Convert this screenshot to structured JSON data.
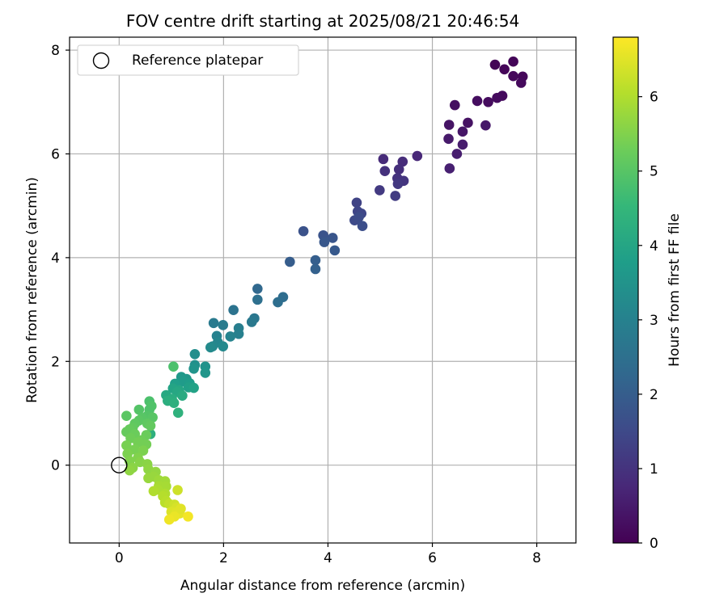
{
  "chart_data": {
    "type": "scatter",
    "title": "FOV centre drift starting at 2025/08/21 20:46:54",
    "xlabel": "Angular distance from reference (arcmin)",
    "ylabel": "Rotation from reference (arcmin)",
    "xlim": [
      -0.95,
      8.75
    ],
    "ylim": [
      -1.5,
      8.25
    ],
    "xticks": [
      0,
      2,
      4,
      6,
      8
    ],
    "yticks": [
      0,
      2,
      4,
      6,
      8
    ],
    "grid": true,
    "legend": {
      "placement": "top-left",
      "entries": [
        "Reference platepar"
      ]
    },
    "reference_point": {
      "x": 0,
      "y": 0,
      "label": "Reference platepar"
    },
    "colorbar": {
      "label": "Hours from first FF file",
      "range": [
        0,
        6.8
      ],
      "ticks": [
        0,
        1,
        2,
        3,
        4,
        5,
        6
      ],
      "colormap": "viridis"
    },
    "series": [
      {
        "points": [
          {
            "x": 7.2,
            "y": 7.72,
            "c": 0.05
          },
          {
            "x": 7.55,
            "y": 7.78,
            "c": 0.08
          },
          {
            "x": 7.38,
            "y": 7.63,
            "c": 0.1
          },
          {
            "x": 7.73,
            "y": 7.49,
            "c": 0.12
          },
          {
            "x": 7.55,
            "y": 7.5,
            "c": 0.14
          },
          {
            "x": 7.7,
            "y": 7.37,
            "c": 0.16
          },
          {
            "x": 7.34,
            "y": 7.12,
            "c": 0.18
          },
          {
            "x": 7.24,
            "y": 7.08,
            "c": 0.2
          },
          {
            "x": 7.07,
            "y": 7.0,
            "c": 0.22
          },
          {
            "x": 6.86,
            "y": 7.02,
            "c": 0.24
          },
          {
            "x": 6.43,
            "y": 6.94,
            "c": 0.28
          },
          {
            "x": 6.68,
            "y": 6.6,
            "c": 0.32
          },
          {
            "x": 6.32,
            "y": 6.56,
            "c": 0.36
          },
          {
            "x": 6.58,
            "y": 6.43,
            "c": 0.4
          },
          {
            "x": 7.02,
            "y": 6.55,
            "c": 0.44
          },
          {
            "x": 6.31,
            "y": 6.29,
            "c": 0.48
          },
          {
            "x": 6.58,
            "y": 6.18,
            "c": 0.52
          },
          {
            "x": 6.47,
            "y": 6.0,
            "c": 0.56
          },
          {
            "x": 6.33,
            "y": 5.72,
            "c": 0.6
          },
          {
            "x": 5.71,
            "y": 5.96,
            "c": 0.75
          },
          {
            "x": 5.06,
            "y": 5.9,
            "c": 0.82
          },
          {
            "x": 5.43,
            "y": 5.85,
            "c": 0.86
          },
          {
            "x": 5.36,
            "y": 5.7,
            "c": 0.9
          },
          {
            "x": 5.09,
            "y": 5.67,
            "c": 0.95
          },
          {
            "x": 5.33,
            "y": 5.53,
            "c": 1.0
          },
          {
            "x": 5.45,
            "y": 5.48,
            "c": 1.05
          },
          {
            "x": 5.34,
            "y": 5.42,
            "c": 1.1
          },
          {
            "x": 4.99,
            "y": 5.3,
            "c": 1.15
          },
          {
            "x": 5.29,
            "y": 5.19,
            "c": 1.2
          },
          {
            "x": 4.55,
            "y": 5.06,
            "c": 1.35
          },
          {
            "x": 4.57,
            "y": 4.89,
            "c": 1.4
          },
          {
            "x": 4.64,
            "y": 4.85,
            "c": 1.45
          },
          {
            "x": 4.51,
            "y": 4.72,
            "c": 1.5
          },
          {
            "x": 4.59,
            "y": 4.78,
            "c": 1.55
          },
          {
            "x": 4.66,
            "y": 4.61,
            "c": 1.6
          },
          {
            "x": 3.53,
            "y": 4.51,
            "c": 1.7
          },
          {
            "x": 3.91,
            "y": 4.43,
            "c": 1.75
          },
          {
            "x": 4.09,
            "y": 4.38,
            "c": 1.8
          },
          {
            "x": 3.93,
            "y": 4.3,
            "c": 1.85
          },
          {
            "x": 4.13,
            "y": 4.14,
            "c": 1.9
          },
          {
            "x": 3.27,
            "y": 3.92,
            "c": 2.0
          },
          {
            "x": 3.76,
            "y": 3.95,
            "c": 2.05
          },
          {
            "x": 3.76,
            "y": 3.78,
            "c": 2.1
          },
          {
            "x": 2.65,
            "y": 3.4,
            "c": 2.3
          },
          {
            "x": 3.14,
            "y": 3.24,
            "c": 2.4
          },
          {
            "x": 3.04,
            "y": 3.14,
            "c": 2.45
          },
          {
            "x": 2.65,
            "y": 3.19,
            "c": 2.5
          },
          {
            "x": 2.19,
            "y": 2.99,
            "c": 2.6
          },
          {
            "x": 2.59,
            "y": 2.83,
            "c": 2.7
          },
          {
            "x": 2.54,
            "y": 2.76,
            "c": 2.75
          },
          {
            "x": 1.81,
            "y": 2.74,
            "c": 2.8
          },
          {
            "x": 1.99,
            "y": 2.7,
            "c": 2.85
          },
          {
            "x": 2.29,
            "y": 2.64,
            "c": 2.9
          },
          {
            "x": 2.29,
            "y": 2.53,
            "c": 2.95
          },
          {
            "x": 1.87,
            "y": 2.49,
            "c": 3.0
          },
          {
            "x": 2.13,
            "y": 2.48,
            "c": 3.05
          },
          {
            "x": 1.89,
            "y": 2.37,
            "c": 3.1
          },
          {
            "x": 1.79,
            "y": 2.29,
            "c": 3.15
          },
          {
            "x": 1.99,
            "y": 2.29,
            "c": 3.2
          },
          {
            "x": 1.75,
            "y": 2.27,
            "c": 3.25
          },
          {
            "x": 1.45,
            "y": 2.14,
            "c": 3.35
          },
          {
            "x": 1.45,
            "y": 1.93,
            "c": 3.4
          },
          {
            "x": 1.65,
            "y": 1.9,
            "c": 3.45
          },
          {
            "x": 1.43,
            "y": 1.86,
            "c": 3.5
          },
          {
            "x": 1.65,
            "y": 1.78,
            "c": 3.55
          },
          {
            "x": 1.29,
            "y": 1.66,
            "c": 3.6
          },
          {
            "x": 1.19,
            "y": 1.7,
            "c": 3.65
          },
          {
            "x": 1.23,
            "y": 1.61,
            "c": 3.7
          },
          {
            "x": 1.35,
            "y": 1.58,
            "c": 3.75
          },
          {
            "x": 1.07,
            "y": 1.57,
            "c": 3.8
          },
          {
            "x": 1.33,
            "y": 1.5,
            "c": 3.85
          },
          {
            "x": 1.43,
            "y": 1.49,
            "c": 3.9
          },
          {
            "x": 1.03,
            "y": 1.48,
            "c": 3.95
          },
          {
            "x": 1.15,
            "y": 1.44,
            "c": 4.0
          },
          {
            "x": 1.11,
            "y": 1.41,
            "c": 4.05
          },
          {
            "x": 0.9,
            "y": 1.35,
            "c": 4.1
          },
          {
            "x": 1.21,
            "y": 1.34,
            "c": 4.15
          },
          {
            "x": 1.01,
            "y": 1.28,
            "c": 4.2
          },
          {
            "x": 0.93,
            "y": 1.24,
            "c": 4.25
          },
          {
            "x": 1.05,
            "y": 1.2,
            "c": 4.3
          },
          {
            "x": 1.13,
            "y": 1.01,
            "c": 4.35
          },
          {
            "x": 0.6,
            "y": 0.6,
            "c": 4.3
          },
          {
            "x": 1.04,
            "y": 1.9,
            "c": 4.85
          },
          {
            "x": 0.58,
            "y": 1.23,
            "c": 4.85
          },
          {
            "x": 0.62,
            "y": 1.14,
            "c": 4.9
          },
          {
            "x": 0.58,
            "y": 1.07,
            "c": 4.9
          },
          {
            "x": 0.38,
            "y": 1.07,
            "c": 4.95
          },
          {
            "x": 0.54,
            "y": 0.95,
            "c": 4.95
          },
          {
            "x": 0.64,
            "y": 0.92,
            "c": 5.0
          },
          {
            "x": 0.44,
            "y": 0.91,
            "c": 5.0
          },
          {
            "x": 0.14,
            "y": 0.95,
            "c": 5.05
          },
          {
            "x": 0.38,
            "y": 0.86,
            "c": 5.05
          },
          {
            "x": 0.3,
            "y": 0.8,
            "c": 5.1
          },
          {
            "x": 0.54,
            "y": 0.8,
            "c": 5.1
          },
          {
            "x": 0.6,
            "y": 0.76,
            "c": 5.15
          },
          {
            "x": 0.26,
            "y": 0.72,
            "c": 5.15
          },
          {
            "x": 0.2,
            "y": 0.69,
            "c": 5.2
          },
          {
            "x": 0.14,
            "y": 0.64,
            "c": 5.2
          },
          {
            "x": 0.3,
            "y": 0.6,
            "c": 5.25
          },
          {
            "x": 0.52,
            "y": 0.58,
            "c": 5.25
          },
          {
            "x": 0.22,
            "y": 0.52,
            "c": 5.3
          },
          {
            "x": 0.42,
            "y": 0.48,
            "c": 5.3
          },
          {
            "x": 0.36,
            "y": 0.44,
            "c": 5.35
          },
          {
            "x": 0.52,
            "y": 0.4,
            "c": 5.35
          },
          {
            "x": 0.14,
            "y": 0.38,
            "c": 5.4
          },
          {
            "x": 0.3,
            "y": 0.3,
            "c": 5.4
          },
          {
            "x": 0.46,
            "y": 0.28,
            "c": 5.45
          },
          {
            "x": 0.16,
            "y": 0.22,
            "c": 5.45
          },
          {
            "x": 0.36,
            "y": 0.14,
            "c": 5.5
          },
          {
            "x": 0.2,
            "y": 0.08,
            "c": 5.5
          },
          {
            "x": 0.4,
            "y": 0.06,
            "c": 5.55
          },
          {
            "x": 0.54,
            "y": 0.02,
            "c": 5.6
          },
          {
            "x": 0.26,
            "y": -0.05,
            "c": 5.6
          },
          {
            "x": 0.56,
            "y": -0.08,
            "c": 5.65
          },
          {
            "x": 0.2,
            "y": -0.1,
            "c": 5.65
          },
          {
            "x": 0.7,
            "y": -0.13,
            "c": 5.7
          },
          {
            "x": 0.66,
            "y": -0.22,
            "c": 5.75
          },
          {
            "x": 0.56,
            "y": -0.25,
            "c": 5.75
          },
          {
            "x": 0.76,
            "y": -0.29,
            "c": 5.8
          },
          {
            "x": 0.88,
            "y": -0.31,
            "c": 5.85
          },
          {
            "x": 0.76,
            "y": -0.4,
            "c": 5.9
          },
          {
            "x": 0.9,
            "y": -0.41,
            "c": 5.9
          },
          {
            "x": 0.74,
            "y": -0.47,
            "c": 5.95
          },
          {
            "x": 0.66,
            "y": -0.5,
            "c": 6.0
          },
          {
            "x": 0.88,
            "y": -0.55,
            "c": 6.0
          },
          {
            "x": 0.84,
            "y": -0.6,
            "c": 6.05
          },
          {
            "x": 0.9,
            "y": -0.69,
            "c": 6.1
          },
          {
            "x": 0.88,
            "y": -0.72,
            "c": 6.1
          },
          {
            "x": 0.96,
            "y": -0.75,
            "c": 6.2
          },
          {
            "x": 1.12,
            "y": -0.48,
            "c": 6.3
          },
          {
            "x": 1.06,
            "y": -0.76,
            "c": 6.3
          },
          {
            "x": 1.1,
            "y": -0.82,
            "c": 6.4
          },
          {
            "x": 1.0,
            "y": -0.9,
            "c": 6.45
          },
          {
            "x": 1.1,
            "y": -0.91,
            "c": 6.5
          },
          {
            "x": 1.16,
            "y": -0.93,
            "c": 6.55
          },
          {
            "x": 1.06,
            "y": -0.99,
            "c": 6.6
          },
          {
            "x": 0.96,
            "y": -1.05,
            "c": 6.65
          },
          {
            "x": 1.32,
            "y": -0.99,
            "c": 6.7
          },
          {
            "x": 1.18,
            "y": -0.84,
            "c": 6.5
          }
        ]
      }
    ]
  }
}
